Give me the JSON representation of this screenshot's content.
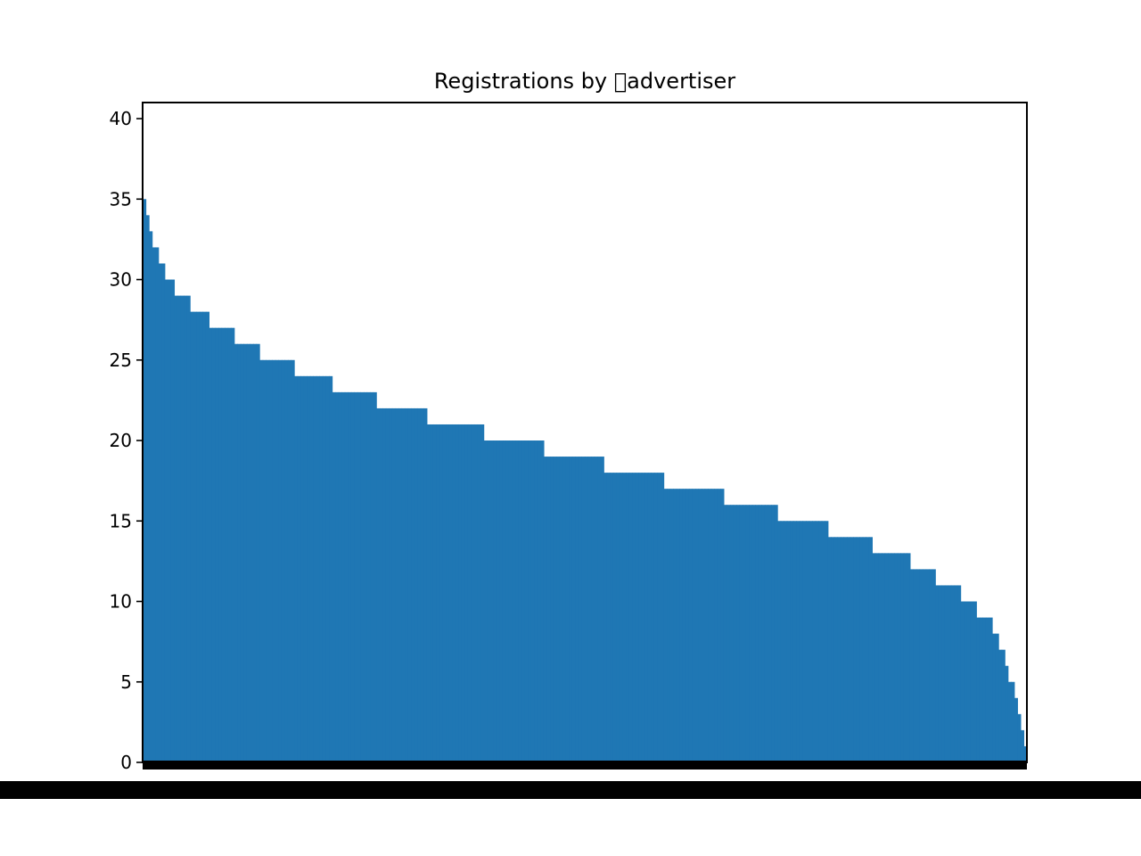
{
  "chart_data": {
    "type": "bar",
    "title": "Registrations by \u0000advertiser",
    "xlabel": "",
    "ylabel": "",
    "ylim": [
      0,
      41
    ],
    "yticks": [
      0,
      5,
      10,
      15,
      20,
      25,
      30,
      35,
      40
    ],
    "grid": false,
    "bar_color": "#1f77b4",
    "x_axis_label_color": "#000000",
    "steps": [
      {
        "value": 35,
        "count": 1
      },
      {
        "value": 34,
        "count": 1
      },
      {
        "value": 33,
        "count": 1
      },
      {
        "value": 32,
        "count": 2
      },
      {
        "value": 31,
        "count": 2
      },
      {
        "value": 30,
        "count": 3
      },
      {
        "value": 29,
        "count": 5
      },
      {
        "value": 28,
        "count": 6
      },
      {
        "value": 27,
        "count": 8
      },
      {
        "value": 26,
        "count": 8
      },
      {
        "value": 25,
        "count": 11
      },
      {
        "value": 24,
        "count": 12
      },
      {
        "value": 23,
        "count": 14
      },
      {
        "value": 22,
        "count": 16
      },
      {
        "value": 21,
        "count": 18
      },
      {
        "value": 20,
        "count": 19
      },
      {
        "value": 19,
        "count": 19
      },
      {
        "value": 18,
        "count": 19
      },
      {
        "value": 17,
        "count": 19
      },
      {
        "value": 16,
        "count": 17
      },
      {
        "value": 15,
        "count": 16
      },
      {
        "value": 14,
        "count": 14
      },
      {
        "value": 13,
        "count": 12
      },
      {
        "value": 12,
        "count": 8
      },
      {
        "value": 11,
        "count": 8
      },
      {
        "value": 10,
        "count": 5
      },
      {
        "value": 9,
        "count": 5
      },
      {
        "value": 8,
        "count": 2
      },
      {
        "value": 7,
        "count": 2
      },
      {
        "value": 6,
        "count": 1
      },
      {
        "value": 5,
        "count": 2
      },
      {
        "value": 4,
        "count": 1
      },
      {
        "value": 3,
        "count": 1
      },
      {
        "value": 2,
        "count": 1
      },
      {
        "value": 1,
        "count": 1
      }
    ]
  }
}
